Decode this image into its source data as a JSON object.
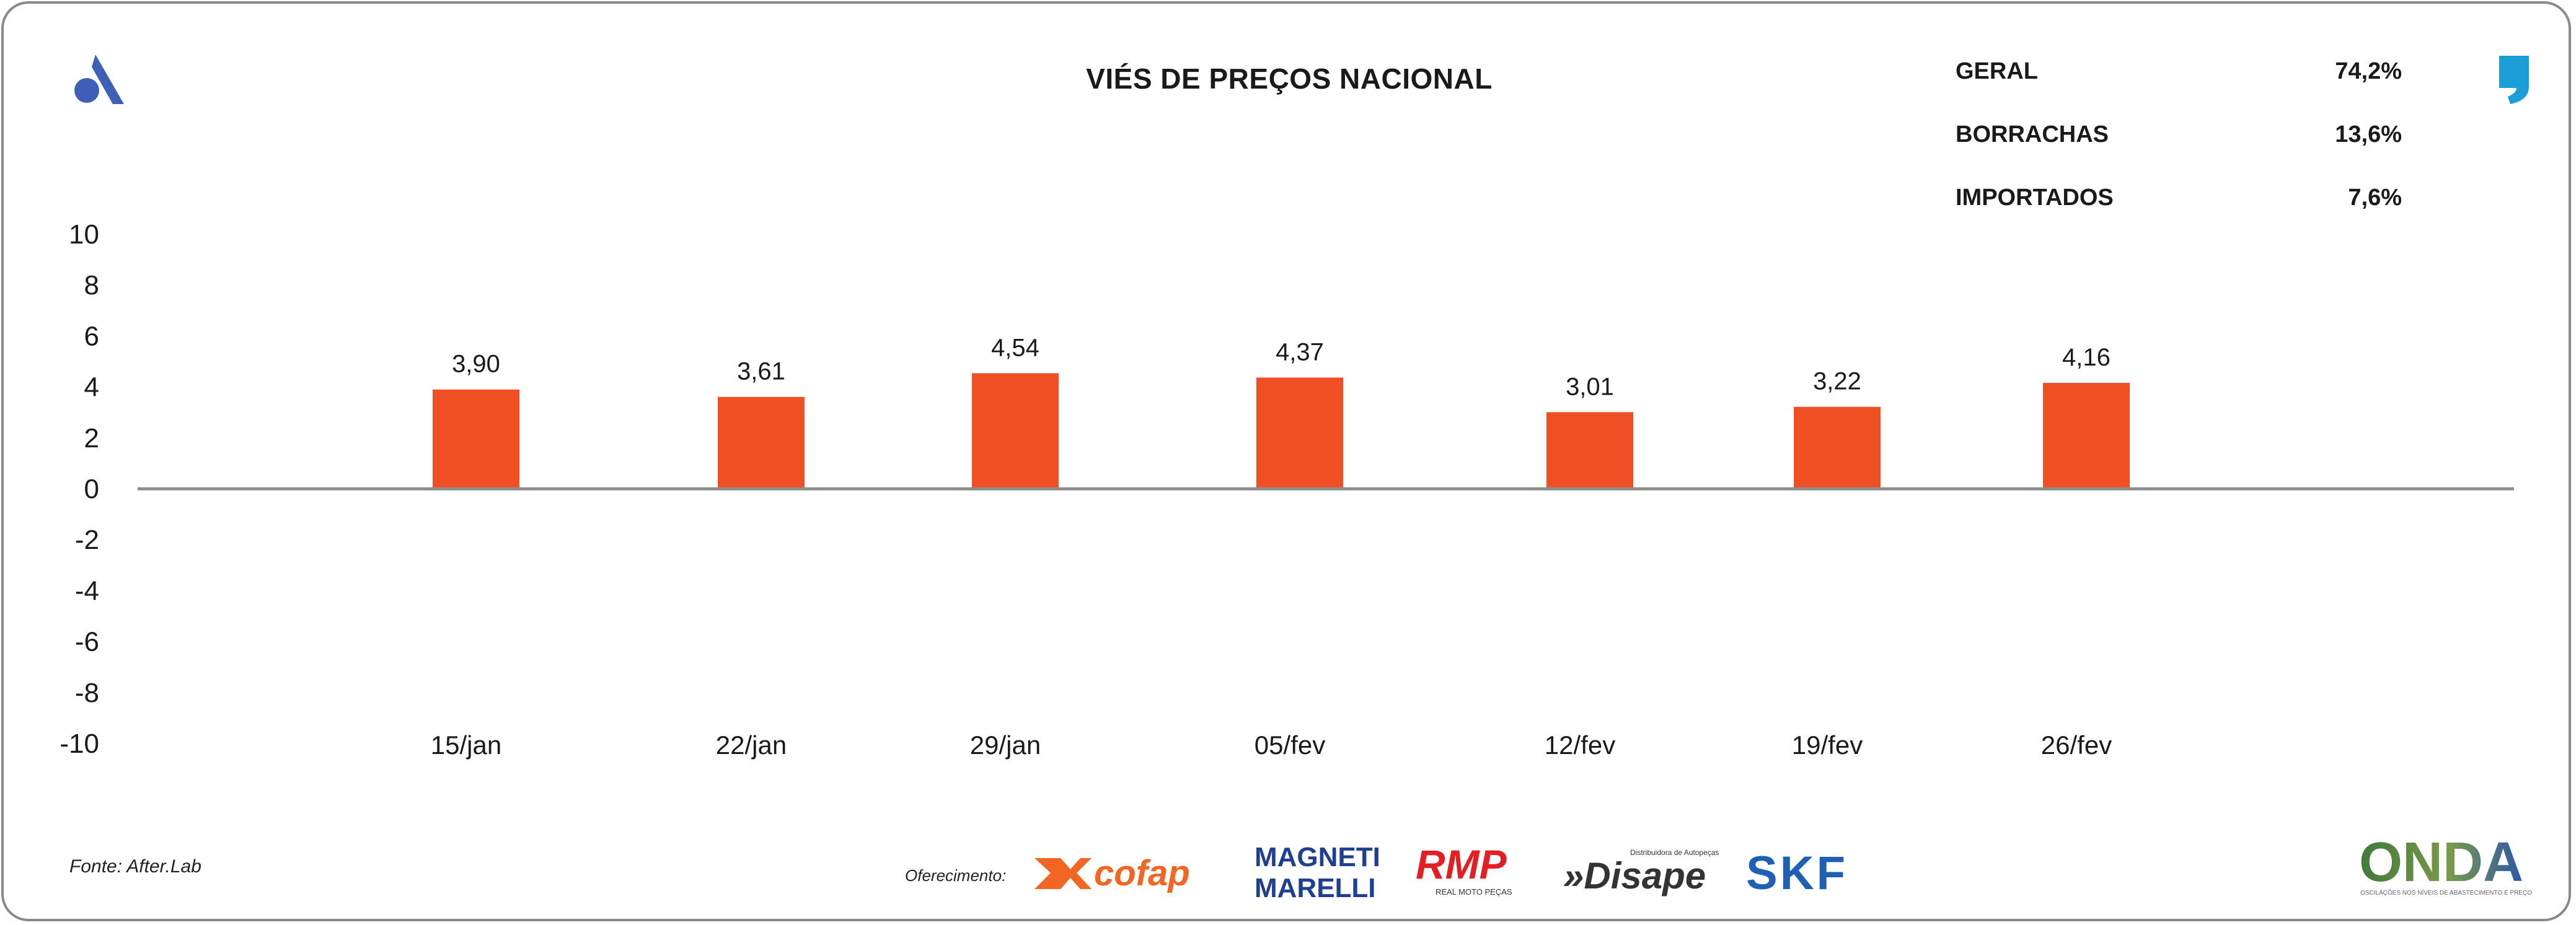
{
  "header": {
    "title": "VIÉS DE PREÇOS NACIONAL"
  },
  "stats": [
    {
      "label": "GERAL",
      "value": "74,2%"
    },
    {
      "label": "BORRACHAS",
      "value": "13,6%"
    },
    {
      "label": "IMPORTADOS",
      "value": "7,6%"
    }
  ],
  "footer": {
    "source": "Fonte: After.Lab",
    "sponsor_label": "Oferecimento:"
  },
  "brands": {
    "cofap": "cofap",
    "magneti_line1": "MAGNETI",
    "magneti_line2": "MARELLI",
    "rmp": "RMP",
    "rmp_sub": "REAL MOTO PEÇAS",
    "disape": "»Disape",
    "disape_sub": "Distribuidora de Autopeças",
    "skf": "SKF",
    "onda": "ONDA",
    "onda_sub": "OSCILAÇÕES NOS NÍVEIS DE ABASTECIMENTO E PREÇO"
  },
  "colors": {
    "bar": "#f04e23",
    "axis": "#8c8c8c",
    "text": "#1a1a1a",
    "logo_blue": "#3d5fb8",
    "quote_blue": "#1a9fd8",
    "cofap": "#f26522",
    "magneti": "#1f3f91",
    "rmp": "#e31e24",
    "skf": "#1f5fb5",
    "onda_green": "#3f7a3a",
    "onda_blue": "#2c56a8"
  },
  "chart_data": {
    "type": "bar",
    "categories": [
      "15/jan",
      "22/jan",
      "29/jan",
      "05/fev",
      "12/fev",
      "19/fev",
      "26/fev"
    ],
    "values": [
      3.9,
      3.61,
      4.54,
      4.37,
      3.01,
      3.22,
      4.16
    ],
    "value_labels": [
      "3,90",
      "3,61",
      "4,54",
      "4,37",
      "3,01",
      "3,22",
      "4,16"
    ],
    "yticks": [
      "10",
      "8",
      "6",
      "4",
      "2",
      "0",
      "-2",
      "-4",
      "-6",
      "-8",
      "-10"
    ],
    "ylim": [
      -10,
      10
    ],
    "title": "VIÉS DE PREÇOS NACIONAL",
    "xlabel": "",
    "ylabel": "",
    "grid": false
  }
}
